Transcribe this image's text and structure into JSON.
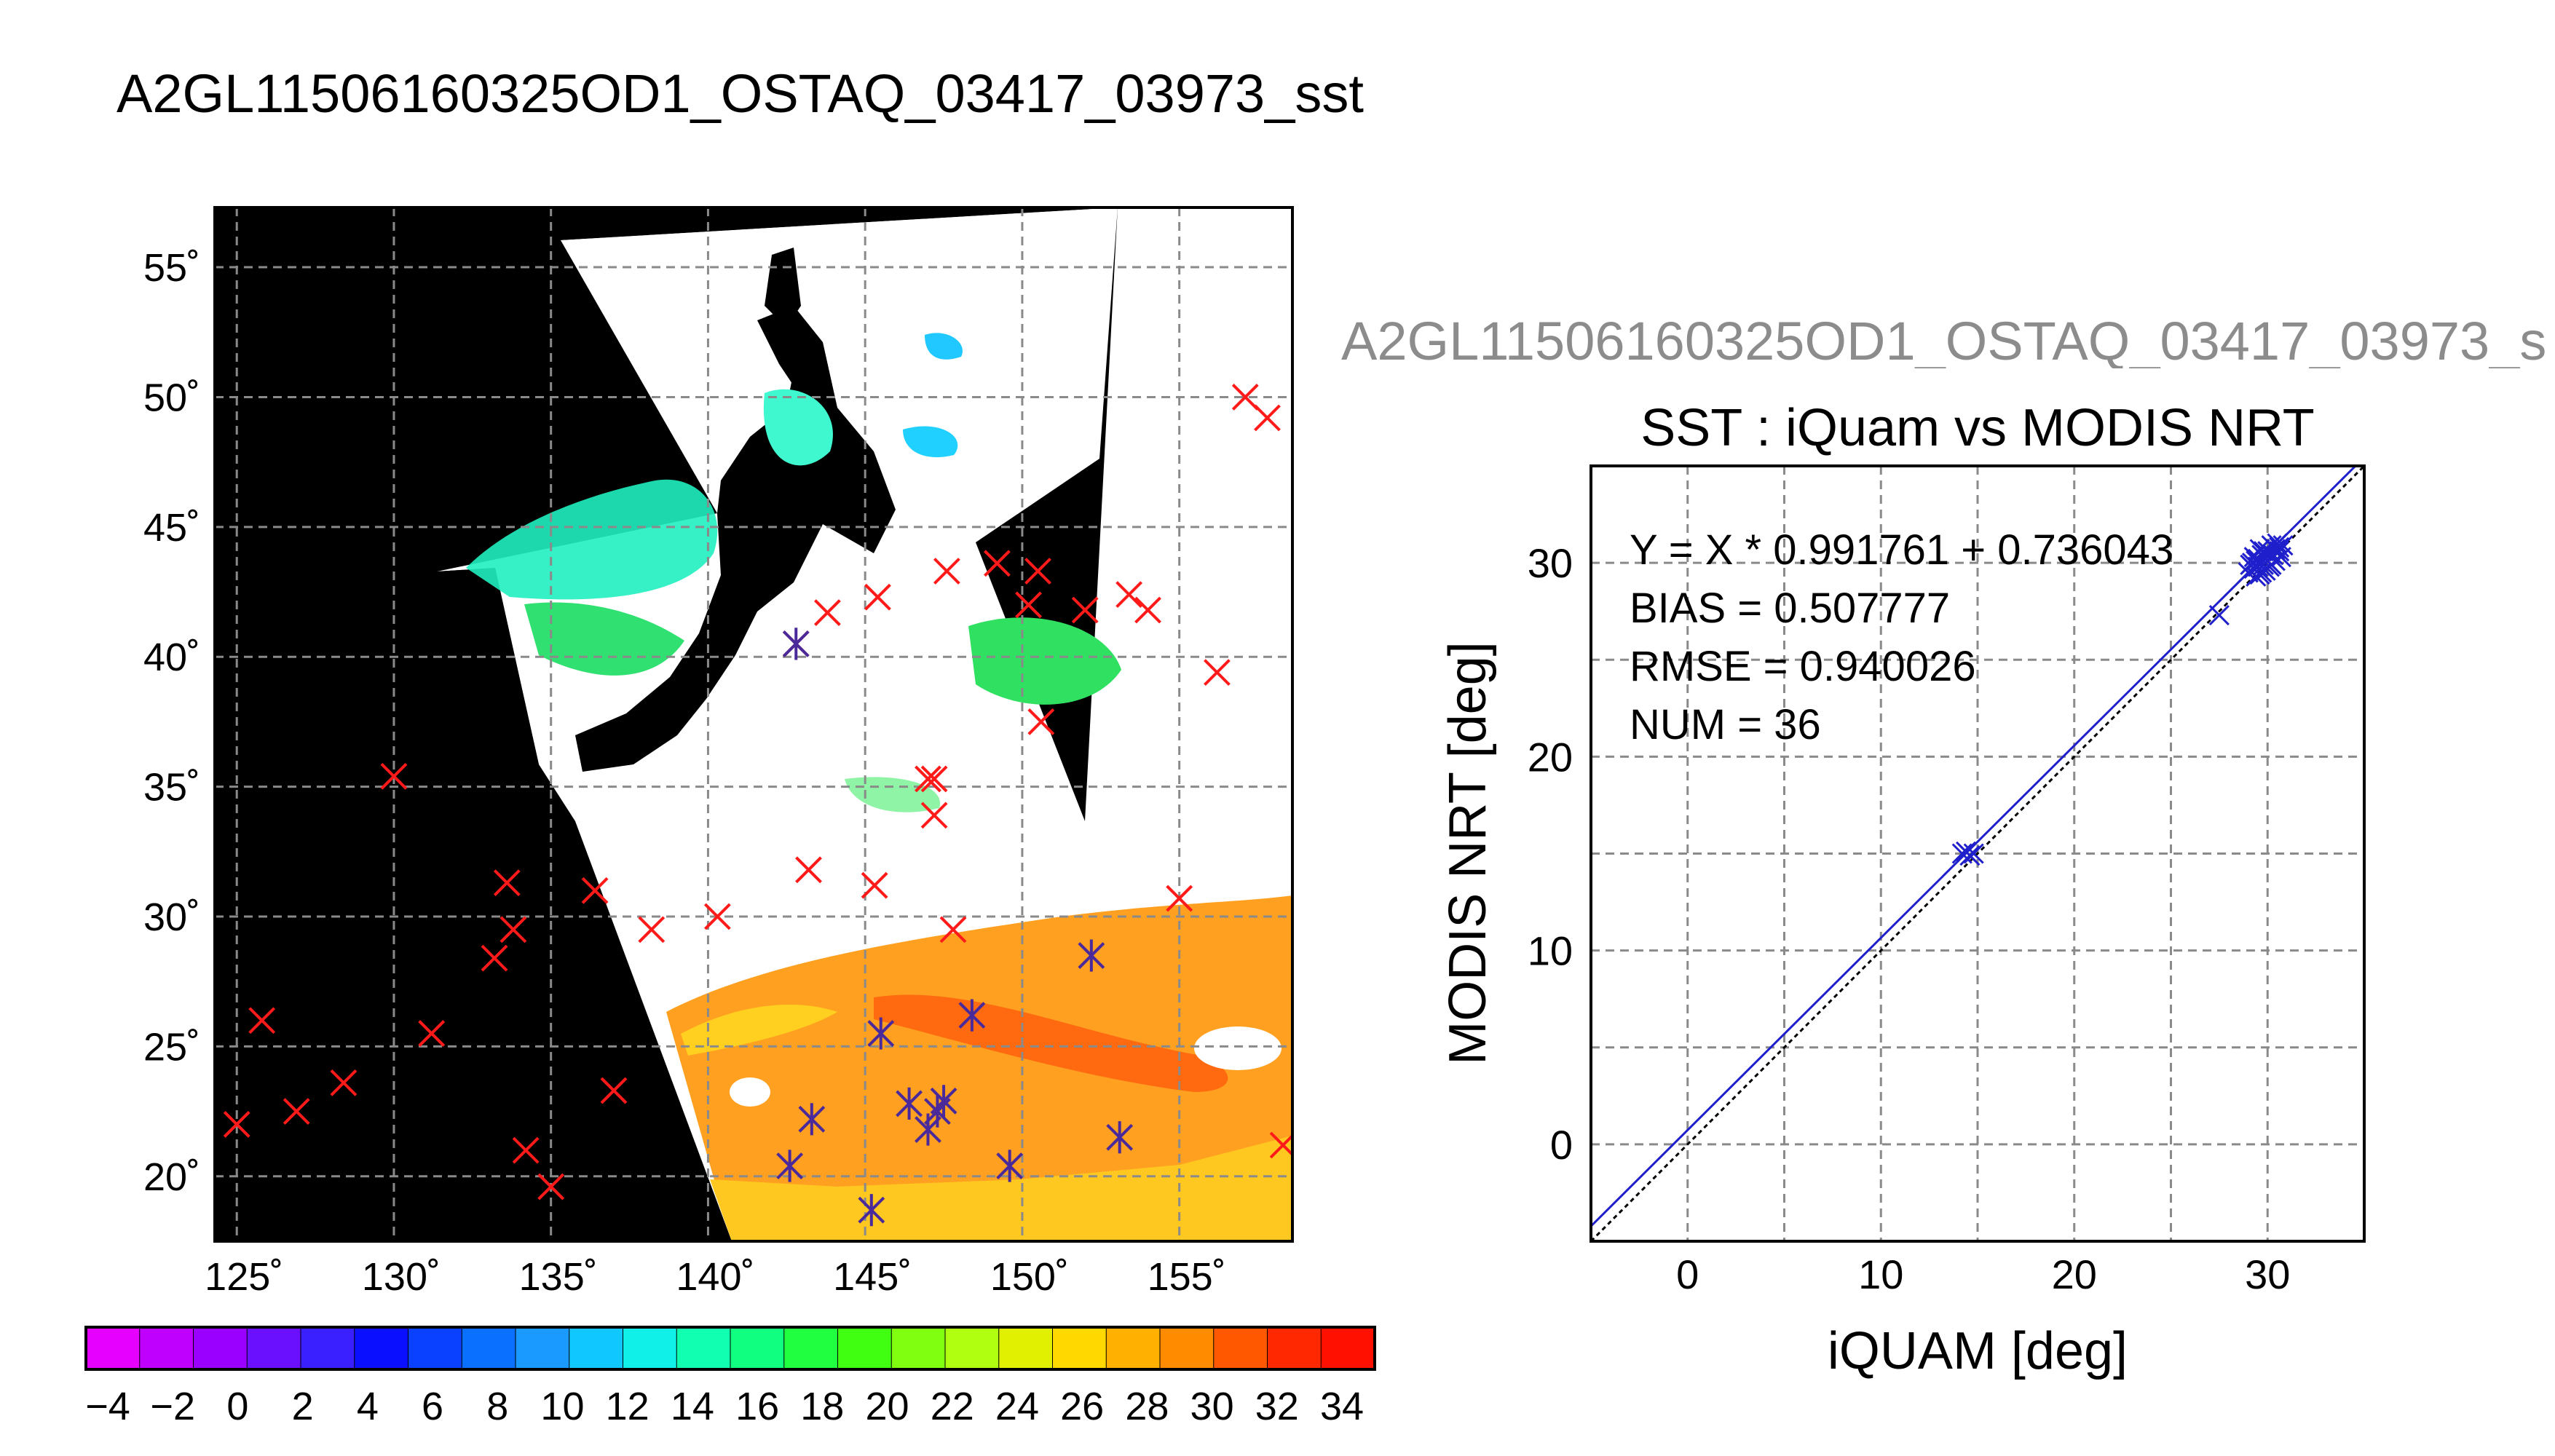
{
  "page_title": "A2GL11506160325OD1_OSTAQ_03417_03973_sst",
  "chart_data": [
    {
      "type": "scatter",
      "panel": "map",
      "title": "",
      "xlabel": "",
      "ylabel": "",
      "xlim": [
        124.3,
        158.6
      ],
      "ylim": [
        17.5,
        57.3
      ],
      "grid": true,
      "x_ticks": [
        125,
        130,
        135,
        140,
        145,
        150,
        155
      ],
      "x_tick_labels": [
        "125˚",
        "130˚",
        "135˚",
        "140˚",
        "145˚",
        "150˚",
        "155˚"
      ],
      "y_ticks": [
        20,
        25,
        30,
        35,
        40,
        45,
        50,
        55
      ],
      "y_tick_labels": [
        "20˚",
        "25˚",
        "30˚",
        "35˚",
        "40˚",
        "45˚",
        "50˚",
        "55˚"
      ],
      "series": [
        {
          "marker": "x",
          "color": "#ff1a1a",
          "points": [
            [
              125.0,
              22.0
            ],
            [
              125.8,
              26.0
            ],
            [
              126.9,
              22.5
            ],
            [
              128.4,
              23.6
            ],
            [
              130.0,
              35.4
            ],
            [
              131.2,
              25.5
            ],
            [
              133.2,
              28.4
            ],
            [
              133.6,
              31.3
            ],
            [
              133.8,
              29.5
            ],
            [
              134.2,
              21.0
            ],
            [
              135.0,
              19.6
            ],
            [
              136.4,
              31.0
            ],
            [
              137.0,
              23.3
            ],
            [
              138.2,
              29.5
            ],
            [
              140.3,
              30.0
            ],
            [
              142.8,
              40.5
            ],
            [
              143.8,
              41.7
            ],
            [
              145.3,
              31.2
            ],
            [
              145.4,
              42.3
            ],
            [
              147.0,
              35.3
            ],
            [
              147.2,
              35.3
            ],
            [
              147.2,
              33.9
            ],
            [
              147.8,
              29.5
            ],
            [
              147.6,
              43.3
            ],
            [
              149.2,
              43.6
            ],
            [
              150.2,
              42.0
            ],
            [
              150.5,
              43.3
            ],
            [
              150.6,
              37.5
            ],
            [
              152.0,
              41.8
            ],
            [
              153.4,
              42.4
            ],
            [
              154.0,
              41.8
            ],
            [
              155.0,
              30.7
            ],
            [
              156.2,
              39.4
            ],
            [
              157.1,
              50.0
            ],
            [
              157.8,
              49.2
            ],
            [
              158.3,
              21.2
            ],
            [
              143.2,
              31.8
            ]
          ]
        },
        {
          "marker": "asterisk",
          "color": "#4a2a9a",
          "points": [
            [
              142.8,
              40.5
            ],
            [
              142.6,
              20.4
            ],
            [
              143.3,
              22.2
            ],
            [
              145.2,
              18.7
            ],
            [
              145.5,
              25.5
            ],
            [
              146.4,
              22.8
            ],
            [
              147.0,
              21.8
            ],
            [
              147.3,
              22.5
            ],
            [
              147.5,
              22.9
            ],
            [
              148.4,
              26.2
            ],
            [
              149.6,
              20.4
            ],
            [
              152.2,
              28.5
            ],
            [
              153.1,
              21.5
            ]
          ]
        }
      ]
    },
    {
      "type": "scatter",
      "panel": "comparison",
      "title": "SST : iQuam vs MODIS NRT",
      "header": "A2GL11506160325OD1_OSTAQ_03417_03973_s",
      "xlabel": "iQUAM [deg]",
      "ylabel": "MODIS NRT [deg]",
      "xlim": [
        -5,
        35
      ],
      "ylim": [
        -5,
        35
      ],
      "grid": true,
      "x_ticks": [
        0,
        10,
        20,
        30
      ],
      "y_ticks": [
        0,
        10,
        20,
        30
      ],
      "x_tick_labels": [
        "0",
        "10",
        "20",
        "30"
      ],
      "y_tick_labels": [
        "0",
        "10",
        "20",
        "30"
      ],
      "stats": [
        "Y = X * 0.991761 + 0.736043",
        "BIAS = 0.507777",
        "RMSE = 0.940026",
        "NUM = 36"
      ],
      "fit": {
        "slope": 0.991761,
        "intercept": 0.736043
      },
      "series": [
        {
          "marker": "x",
          "color": "#1f1fcc",
          "points": [
            [
              14.2,
              15.0
            ],
            [
              14.4,
              15.1
            ],
            [
              14.6,
              14.9
            ],
            [
              14.8,
              15.0
            ],
            [
              27.5,
              27.3
            ],
            [
              29.0,
              29.5
            ],
            [
              29.2,
              30.0
            ],
            [
              29.3,
              29.7
            ],
            [
              29.4,
              29.3
            ],
            [
              29.5,
              30.2
            ],
            [
              29.5,
              29.8
            ],
            [
              29.6,
              29.4
            ],
            [
              29.7,
              30.4
            ],
            [
              29.8,
              29.9
            ],
            [
              29.9,
              29.6
            ],
            [
              30.0,
              30.6
            ],
            [
              30.0,
              30.1
            ],
            [
              30.1,
              29.8
            ],
            [
              30.2,
              30.9
            ],
            [
              30.3,
              30.4
            ],
            [
              30.4,
              30.1
            ],
            [
              30.5,
              31.0
            ],
            [
              30.6,
              30.6
            ],
            [
              30.7,
              30.3
            ],
            [
              30.8,
              30.9
            ],
            [
              29.1,
              29.9
            ],
            [
              29.3,
              30.3
            ],
            [
              29.6,
              30.7
            ],
            [
              29.9,
              30.2
            ],
            [
              30.1,
              30.5
            ],
            [
              30.4,
              30.7
            ],
            [
              29.7,
              29.5
            ],
            [
              29.4,
              30.1
            ],
            [
              30.2,
              29.9
            ],
            [
              30.6,
              30.8
            ],
            [
              29.8,
              30.6
            ]
          ]
        }
      ]
    }
  ],
  "colorbar": {
    "tick_labels": [
      "−4",
      "−2",
      "0",
      "2",
      "4",
      "6",
      "8",
      "10",
      "12",
      "14",
      "16",
      "18",
      "20",
      "22",
      "24",
      "26",
      "28",
      "30",
      "32",
      "34"
    ],
    "colors": [
      "#e600ff",
      "#c000ff",
      "#9a00ff",
      "#6a10ff",
      "#3a20ff",
      "#0a10ff",
      "#0a40ff",
      "#0a70ff",
      "#1a9aff",
      "#10c8ff",
      "#10f0e8",
      "#10ffb0",
      "#10ff80",
      "#20ff40",
      "#40ff10",
      "#80ff10",
      "#b0ff10",
      "#e0f000",
      "#ffd800",
      "#ffb000",
      "#ff8c00",
      "#ff5800",
      "#ff2800",
      "#ff1000"
    ]
  }
}
